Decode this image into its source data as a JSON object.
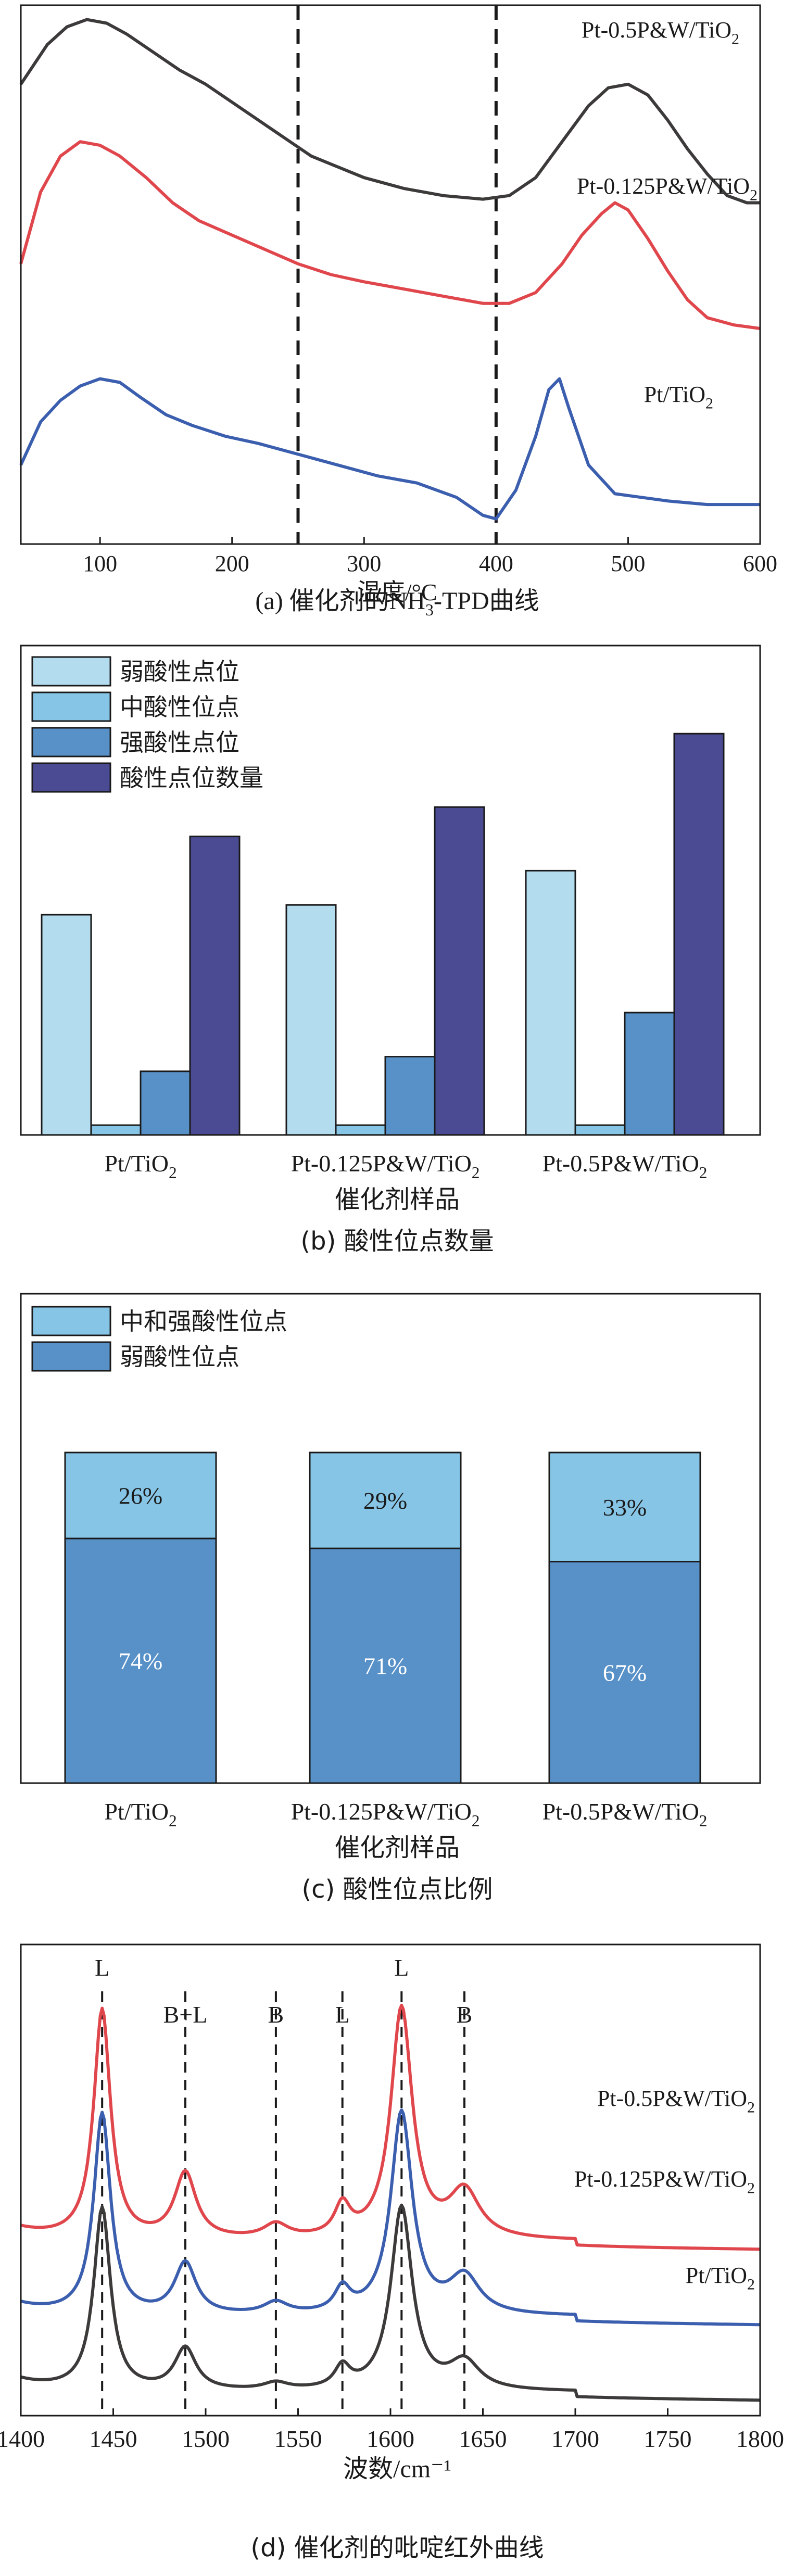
{
  "charts": [
    {
      "id": "a",
      "type": "line",
      "caption_prefix": "(a) 催化剂的NH",
      "caption_sub": "3",
      "caption_suffix": "-TPD曲线",
      "xlabel": "温度/°C",
      "xlim": [
        40,
        600
      ],
      "xticks": [
        "100",
        "200",
        "300",
        "400",
        "500",
        "600"
      ],
      "grid": false,
      "vlines": [
        250,
        400
      ],
      "series": [
        {
          "name_main": "Pt-0.5P&W/TiO",
          "name_sub": "2",
          "color": "#3d3a3a",
          "points": [
            [
              40,
              0.78
            ],
            [
              60,
              0.89
            ],
            [
              75,
              0.94
            ],
            [
              90,
              0.96
            ],
            [
              105,
              0.95
            ],
            [
              120,
              0.92
            ],
            [
              140,
              0.87
            ],
            [
              160,
              0.82
            ],
            [
              180,
              0.78
            ],
            [
              200,
              0.73
            ],
            [
              220,
              0.68
            ],
            [
              240,
              0.63
            ],
            [
              260,
              0.58
            ],
            [
              280,
              0.55
            ],
            [
              300,
              0.52
            ],
            [
              330,
              0.49
            ],
            [
              360,
              0.47
            ],
            [
              390,
              0.46
            ],
            [
              410,
              0.47
            ],
            [
              430,
              0.52
            ],
            [
              450,
              0.62
            ],
            [
              470,
              0.72
            ],
            [
              485,
              0.77
            ],
            [
              500,
              0.78
            ],
            [
              515,
              0.75
            ],
            [
              530,
              0.68
            ],
            [
              545,
              0.6
            ],
            [
              560,
              0.53
            ],
            [
              575,
              0.47
            ],
            [
              590,
              0.45
            ],
            [
              600,
              0.45
            ]
          ]
        },
        {
          "name_main": "Pt-0.125P&W/TiO",
          "name_sub": "2",
          "color": "#e0474d",
          "points": [
            [
              40,
              0.28
            ],
            [
              55,
              0.48
            ],
            [
              70,
              0.58
            ],
            [
              85,
              0.62
            ],
            [
              100,
              0.61
            ],
            [
              115,
              0.58
            ],
            [
              135,
              0.52
            ],
            [
              155,
              0.45
            ],
            [
              175,
              0.4
            ],
            [
              200,
              0.36
            ],
            [
              225,
              0.32
            ],
            [
              250,
              0.28
            ],
            [
              275,
              0.25
            ],
            [
              300,
              0.23
            ],
            [
              330,
              0.21
            ],
            [
              360,
              0.19
            ],
            [
              390,
              0.17
            ],
            [
              410,
              0.17
            ],
            [
              430,
              0.2
            ],
            [
              450,
              0.28
            ],
            [
              465,
              0.36
            ],
            [
              480,
              0.42
            ],
            [
              490,
              0.45
            ],
            [
              500,
              0.43
            ],
            [
              515,
              0.35
            ],
            [
              530,
              0.26
            ],
            [
              545,
              0.18
            ],
            [
              560,
              0.13
            ],
            [
              580,
              0.11
            ],
            [
              600,
              0.1
            ]
          ]
        },
        {
          "name_main": "Pt/TiO",
          "name_sub": "2",
          "color": "#3b5fae",
          "points": [
            [
              40,
              -0.28
            ],
            [
              55,
              -0.16
            ],
            [
              70,
              -0.1
            ],
            [
              85,
              -0.06
            ],
            [
              100,
              -0.04
            ],
            [
              115,
              -0.05
            ],
            [
              130,
              -0.09
            ],
            [
              150,
              -0.14
            ],
            [
              170,
              -0.17
            ],
            [
              195,
              -0.2
            ],
            [
              220,
              -0.22
            ],
            [
              250,
              -0.25
            ],
            [
              280,
              -0.28
            ],
            [
              310,
              -0.31
            ],
            [
              340,
              -0.33
            ],
            [
              370,
              -0.37
            ],
            [
              390,
              -0.42
            ],
            [
              400,
              -0.43
            ],
            [
              415,
              -0.35
            ],
            [
              430,
              -0.2
            ],
            [
              440,
              -0.07
            ],
            [
              448,
              -0.04
            ],
            [
              455,
              -0.12
            ],
            [
              470,
              -0.28
            ],
            [
              490,
              -0.36
            ],
            [
              510,
              -0.37
            ],
            [
              530,
              -0.38
            ],
            [
              560,
              -0.39
            ],
            [
              600,
              -0.39
            ]
          ]
        }
      ],
      "ylim": [
        -0.5,
        1.0
      ]
    },
    {
      "id": "b",
      "type": "bar",
      "caption": "(b) 酸性位点数量",
      "xlabel": "催化剂样品",
      "legend": [
        "弱酸性点位",
        "中酸性位点",
        "强酸性点位",
        "酸性点位数量"
      ],
      "colors": [
        "#b3dcef",
        "#87c5e6",
        "#5891c8",
        "#4b4b94"
      ],
      "categories": [
        {
          "main": "Pt/TiO",
          "sub": "2"
        },
        {
          "main": "Pt-0.125P&W/TiO",
          "sub": "2"
        },
        {
          "main": "Pt-0.5P&W/TiO",
          "sub": "2"
        }
      ],
      "values": [
        [
          0.45,
          0.02,
          0.13,
          0.61
        ],
        [
          0.47,
          0.02,
          0.16,
          0.67
        ],
        [
          0.54,
          0.02,
          0.25,
          0.82
        ]
      ],
      "ylim": [
        0,
        1
      ]
    },
    {
      "id": "c",
      "type": "bar",
      "caption": "(c) 酸性位点比例",
      "xlabel": "催化剂样品",
      "legend": [
        "中和强酸性位点",
        "弱酸性位点"
      ],
      "colors": [
        "#87c5e6",
        "#5891c8"
      ],
      "categories": [
        {
          "main": "Pt/TiO",
          "sub": "2"
        },
        {
          "main": "Pt-0.125P&W/TiO",
          "sub": "2"
        },
        {
          "main": "Pt-0.5P&W/TiO",
          "sub": "2"
        }
      ],
      "weak": [
        74,
        71,
        67
      ],
      "strong": [
        26,
        29,
        33
      ],
      "weak_labels": [
        "74%",
        "71%",
        "67%"
      ],
      "strong_labels": [
        "26%",
        "29%",
        "33%"
      ],
      "ylim": [
        0,
        100
      ]
    },
    {
      "id": "d",
      "type": "line",
      "caption": "(d) 催化剂的吡啶红外曲线",
      "xlabel": "波数/cm⁻¹",
      "xlim": [
        1400,
        1800
      ],
      "xticks": [
        "1400",
        "1450",
        "1500",
        "1550",
        "1600",
        "1650",
        "1700",
        "1750",
        "1800"
      ],
      "grid": false,
      "bands": [
        {
          "x": 1444,
          "label": "L"
        },
        {
          "x": 1489,
          "label": "B+L"
        },
        {
          "x": 1538,
          "label": "B"
        },
        {
          "x": 1574,
          "label": "L"
        },
        {
          "x": 1606,
          "label": "L"
        },
        {
          "x": 1640,
          "label": "B"
        }
      ],
      "series": [
        {
          "name_main": "Pt-0.5P&W/TiO",
          "name_sub": "2",
          "color": "#e0474d",
          "baseline": 0.64,
          "heights": [
            0.98,
            0.28,
            0.06,
            0.13,
            0.98,
            0.2
          ]
        },
        {
          "name_main": "Pt-0.125P&W/TiO",
          "name_sub": "2",
          "color": "#3b5fae",
          "baseline": 0.32,
          "heights": [
            0.86,
            0.22,
            0.05,
            0.1,
            0.86,
            0.16
          ]
        },
        {
          "name_main": "Pt/TiO",
          "name_sub": "2",
          "color": "#3d3a3a",
          "baseline": 0.0,
          "heights": [
            0.78,
            0.18,
            0.03,
            0.09,
            0.78,
            0.12
          ]
        }
      ],
      "ylim": [
        -0.1,
        1.9
      ]
    }
  ]
}
